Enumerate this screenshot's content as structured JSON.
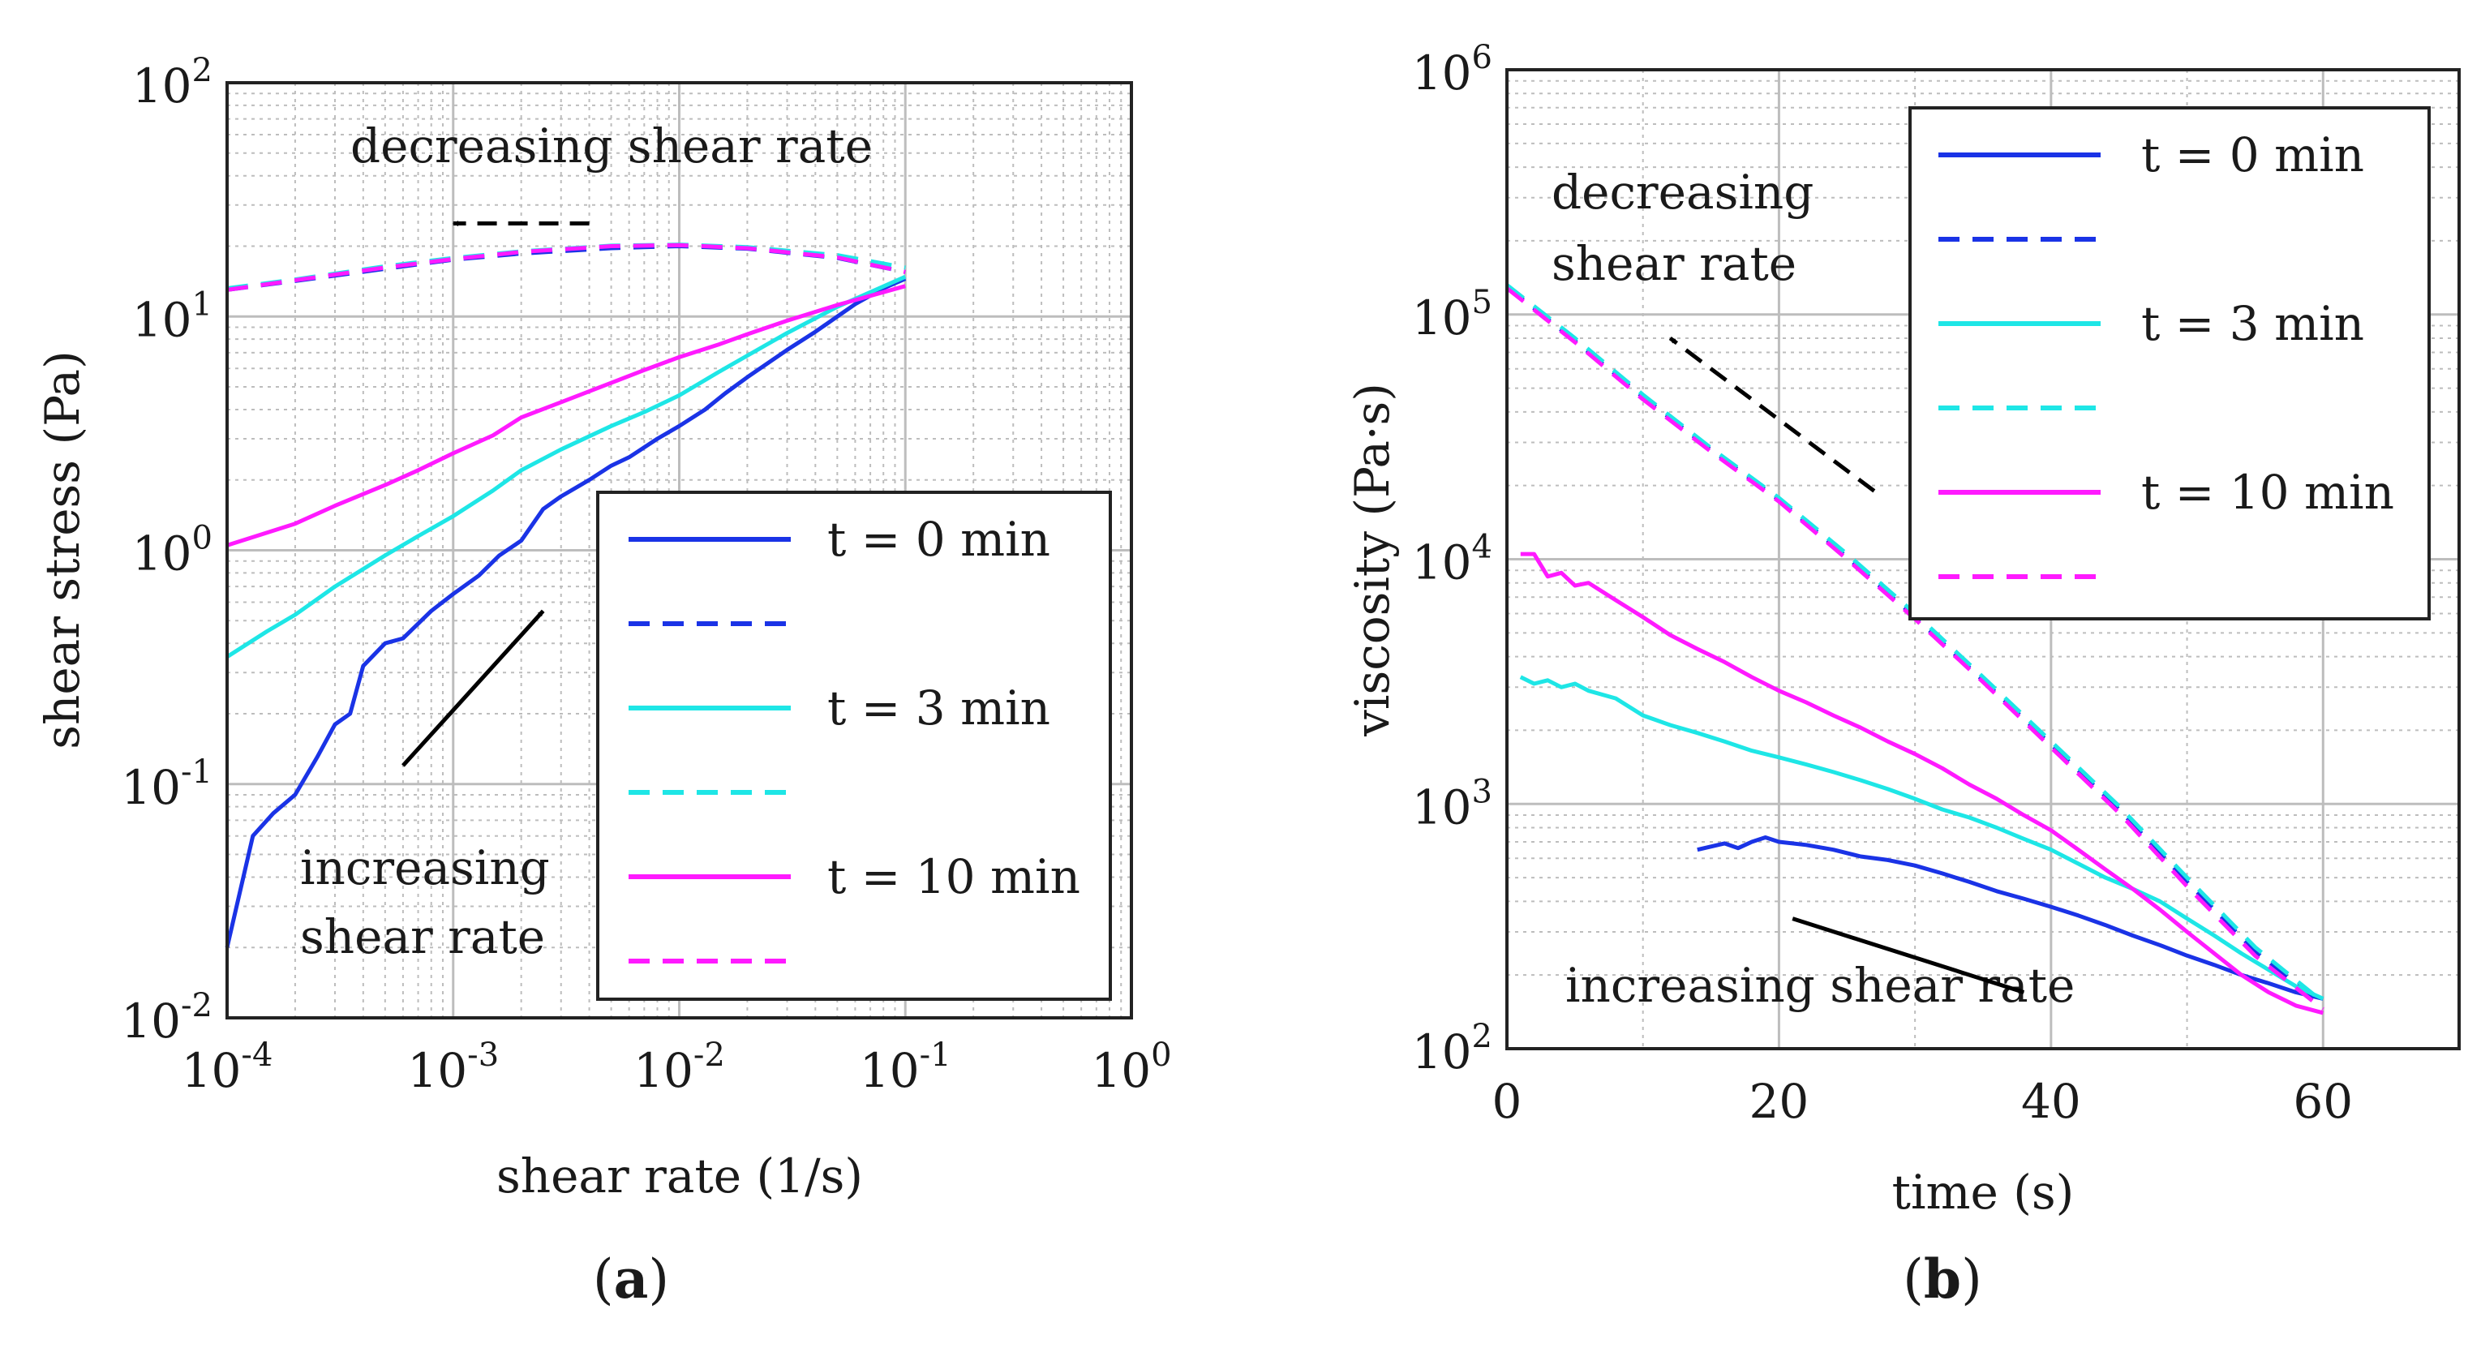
{
  "colors": {
    "t0": "#1a33e6",
    "t3": "#1ee6e6",
    "t10": "#ff1aff",
    "annotation": "#000000",
    "grid": "#bdbdbd"
  },
  "chart_data": [
    {
      "panel": "a",
      "caption_paren_open": "(",
      "caption_letter": "a",
      "caption_paren_close": ")",
      "type": "line",
      "xscale": "log",
      "yscale": "log",
      "xlabel": "shear rate (1/s)",
      "ylabel": "shear stress (Pa)",
      "xlim": [
        0.0001,
        1
      ],
      "ylim": [
        0.01,
        100
      ],
      "xticks": [
        {
          "base": "10",
          "exp": "-4"
        },
        {
          "base": "10",
          "exp": "-3"
        },
        {
          "base": "10",
          "exp": "-2"
        },
        {
          "base": "10",
          "exp": "-1"
        },
        {
          "base": "10",
          "exp": "0"
        }
      ],
      "yticks": [
        {
          "base": "10",
          "exp": "-2"
        },
        {
          "base": "10",
          "exp": "-1"
        },
        {
          "base": "10",
          "exp": "0"
        },
        {
          "base": "10",
          "exp": "1"
        },
        {
          "base": "10",
          "exp": "2"
        }
      ],
      "grid": true,
      "legend_placement": "bottom-right",
      "legend": [
        "t = 0 min",
        "",
        "t = 3 min",
        "",
        "t = 10  min",
        ""
      ],
      "annotations": [
        {
          "id": "a-decreasing",
          "lines": [
            "decreasing shear rate"
          ],
          "arrow_from": [
            0.004,
            25
          ],
          "arrow_to": [
            0.001,
            25
          ],
          "style": "dashed"
        },
        {
          "id": "a-increasing",
          "lines": [
            "increasing",
            "shear rate"
          ],
          "arrow_from": [
            0.0006,
            0.12
          ],
          "arrow_to": [
            0.0025,
            0.55
          ],
          "style": "solid"
        }
      ],
      "series": [
        {
          "name": "t = 0 min",
          "color_key": "t0",
          "dash": false,
          "x": [
            0.0001,
            0.00013,
            0.00016,
            0.0002,
            0.00025,
            0.0003,
            0.00035,
            0.0004,
            0.0005,
            0.0006,
            0.0008,
            0.001,
            0.0013,
            0.0016,
            0.002,
            0.0025,
            0.003,
            0.004,
            0.005,
            0.006,
            0.008,
            0.01,
            0.013,
            0.016,
            0.02,
            0.03,
            0.04,
            0.05,
            0.06,
            0.08,
            0.1
          ],
          "y": [
            0.02,
            0.06,
            0.075,
            0.09,
            0.13,
            0.18,
            0.2,
            0.32,
            0.4,
            0.42,
            0.55,
            0.65,
            0.78,
            0.95,
            1.1,
            1.5,
            1.7,
            2.0,
            2.3,
            2.5,
            3.0,
            3.4,
            4.0,
            4.7,
            5.5,
            7.2,
            8.6,
            10.0,
            11.3,
            13.2,
            14.5
          ]
        },
        {
          "name": "",
          "color_key": "t0",
          "dash": true,
          "x": [
            0.0001,
            0.0002,
            0.0005,
            0.001,
            0.002,
            0.005,
            0.01,
            0.02,
            0.05,
            0.1
          ],
          "y": [
            13.0,
            14.2,
            16.0,
            17.5,
            18.6,
            19.6,
            20.0,
            19.5,
            17.8,
            15.5
          ]
        },
        {
          "name": "t = 3 min",
          "color_key": "t3",
          "dash": false,
          "x": [
            0.0001,
            0.00015,
            0.0002,
            0.0003,
            0.0005,
            0.0007,
            0.001,
            0.0015,
            0.002,
            0.003,
            0.005,
            0.007,
            0.01,
            0.015,
            0.02,
            0.03,
            0.05,
            0.1
          ],
          "y": [
            0.35,
            0.45,
            0.53,
            0.7,
            0.95,
            1.15,
            1.4,
            1.8,
            2.2,
            2.7,
            3.4,
            3.9,
            4.6,
            5.8,
            6.8,
            8.5,
            11.0,
            14.8
          ]
        },
        {
          "name": "",
          "color_key": "t3",
          "dash": true,
          "x": [
            0.0001,
            0.0002,
            0.0005,
            0.001,
            0.002,
            0.005,
            0.01,
            0.02,
            0.05,
            0.1
          ],
          "y": [
            13.2,
            14.4,
            16.4,
            17.8,
            19.0,
            20.1,
            20.3,
            19.8,
            18.3,
            16.2
          ]
        },
        {
          "name": "t = 10  min",
          "color_key": "t10",
          "dash": false,
          "x": [
            0.0001,
            0.0002,
            0.0003,
            0.0005,
            0.0007,
            0.001,
            0.0015,
            0.002,
            0.003,
            0.005,
            0.007,
            0.01,
            0.015,
            0.02,
            0.03,
            0.05,
            0.1
          ],
          "y": [
            1.05,
            1.3,
            1.55,
            1.9,
            2.2,
            2.6,
            3.1,
            3.7,
            4.3,
            5.2,
            5.9,
            6.7,
            7.6,
            8.4,
            9.6,
            11.2,
            13.5
          ]
        },
        {
          "name": "",
          "color_key": "t10",
          "dash": true,
          "x": [
            0.0001,
            0.0002,
            0.0005,
            0.001,
            0.002,
            0.005,
            0.01,
            0.02,
            0.05,
            0.1
          ],
          "y": [
            13.0,
            14.3,
            16.2,
            17.6,
            18.9,
            20.0,
            20.2,
            19.6,
            17.9,
            15.5
          ]
        }
      ]
    },
    {
      "panel": "b",
      "caption_paren_open": "(",
      "caption_letter": "b",
      "caption_paren_close": ")",
      "type": "line",
      "xscale": "linear",
      "yscale": "log",
      "xlabel": "time (s)",
      "ylabel": "viscosity (Pa·s)",
      "xlim": [
        0,
        70
      ],
      "ylim": [
        100,
        1000000
      ],
      "xticks": [
        {
          "base": "0"
        },
        {
          "base": "20"
        },
        {
          "base": "40"
        },
        {
          "base": "60"
        }
      ],
      "xtick_values": [
        0,
        20,
        40,
        60
      ],
      "yticks": [
        {
          "base": "10",
          "exp": "2"
        },
        {
          "base": "10",
          "exp": "3"
        },
        {
          "base": "10",
          "exp": "4"
        },
        {
          "base": "10",
          "exp": "5"
        },
        {
          "base": "10",
          "exp": "6"
        }
      ],
      "grid": true,
      "legend_placement": "top-right",
      "legend": [
        "t = 0 min",
        "",
        "t = 3 min",
        "",
        "t = 10 min",
        ""
      ],
      "annotations": [
        {
          "id": "b-decreasing",
          "lines": [
            "decreasing",
            "shear rate"
          ],
          "arrow_from": [
            27,
            19000
          ],
          "arrow_to": [
            12,
            80000
          ],
          "style": "dashed"
        },
        {
          "id": "b-increasing",
          "lines": [
            "increasing shear rate"
          ],
          "arrow_from": [
            21,
            340
          ],
          "arrow_to": [
            38,
            170
          ],
          "style": "solid"
        }
      ],
      "series": [
        {
          "name": "t = 0 min",
          "color_key": "t0",
          "dash": false,
          "x": [
            14,
            16,
            17,
            18,
            19,
            20,
            22,
            24,
            26,
            28,
            30,
            32,
            34,
            36,
            38,
            40,
            42,
            44,
            46,
            48,
            50,
            52,
            54,
            56,
            58,
            60
          ],
          "y": [
            650,
            690,
            660,
            700,
            730,
            700,
            680,
            650,
            610,
            590,
            560,
            520,
            480,
            440,
            410,
            380,
            350,
            320,
            290,
            265,
            240,
            220,
            200,
            185,
            170,
            160
          ]
        },
        {
          "name": "",
          "color_key": "t0",
          "dash": true,
          "x": [
            0,
            5,
            10,
            15,
            20,
            25,
            30,
            35,
            40,
            45,
            50,
            55,
            60
          ],
          "y": [
            130000,
            78000,
            46000,
            28000,
            17500,
            10200,
            5800,
            3200,
            1750,
            950,
            480,
            250,
            150
          ]
        },
        {
          "name": "t = 3 min",
          "color_key": "t3",
          "dash": false,
          "x": [
            1,
            2,
            3,
            4,
            5,
            6,
            8,
            10,
            12,
            14,
            16,
            18,
            20,
            22,
            24,
            26,
            28,
            30,
            32,
            34,
            36,
            38,
            40,
            42,
            44,
            46,
            48,
            50,
            52,
            54,
            56,
            58,
            60
          ],
          "y": [
            3300,
            3100,
            3200,
            3000,
            3100,
            2900,
            2700,
            2300,
            2100,
            1950,
            1800,
            1650,
            1550,
            1450,
            1350,
            1250,
            1150,
            1050,
            950,
            880,
            800,
            720,
            650,
            570,
            500,
            450,
            400,
            340,
            290,
            245,
            210,
            180,
            160
          ]
        },
        {
          "name": "",
          "color_key": "t3",
          "dash": true,
          "x": [
            0,
            5,
            10,
            15,
            20,
            25,
            30,
            35,
            40,
            45,
            50,
            55,
            60
          ],
          "y": [
            132000,
            80000,
            47000,
            28500,
            17800,
            10500,
            6000,
            3300,
            1800,
            980,
            500,
            260,
            155
          ]
        },
        {
          "name": "t = 10 min",
          "color_key": "t10",
          "dash": false,
          "x": [
            1,
            2,
            3,
            4,
            5,
            6,
            8,
            10,
            12,
            14,
            16,
            18,
            20,
            22,
            24,
            26,
            28,
            30,
            32,
            34,
            36,
            38,
            40,
            42,
            44,
            46,
            48,
            50,
            52,
            54,
            56,
            58,
            60
          ],
          "y": [
            10500,
            10500,
            8500,
            8800,
            7800,
            8000,
            6800,
            5800,
            4900,
            4300,
            3800,
            3300,
            2900,
            2600,
            2300,
            2050,
            1800,
            1600,
            1400,
            1200,
            1050,
            900,
            780,
            650,
            540,
            450,
            370,
            300,
            245,
            200,
            170,
            150,
            140
          ]
        },
        {
          "name": "",
          "color_key": "t10",
          "dash": true,
          "x": [
            0,
            5,
            10,
            15,
            20,
            25,
            30,
            35,
            40,
            45,
            50,
            55,
            60
          ],
          "y": [
            128000,
            77000,
            45000,
            27500,
            17200,
            10000,
            5700,
            3150,
            1700,
            920,
            460,
            240,
            145
          ]
        }
      ]
    }
  ]
}
